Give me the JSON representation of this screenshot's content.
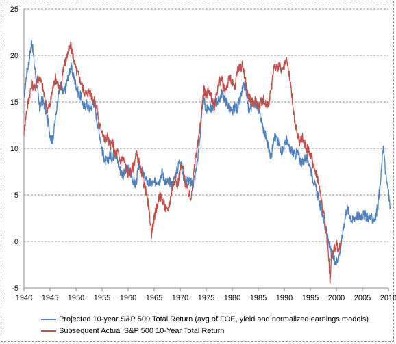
{
  "chart_data": {
    "type": "line",
    "xlim": [
      1940,
      2010
    ],
    "ylim": [
      -5,
      25
    ],
    "x_ticks": [
      1940,
      1945,
      1950,
      1955,
      1960,
      1965,
      1970,
      1975,
      1980,
      1985,
      1990,
      1995,
      2000,
      2005,
      2010
    ],
    "y_ticks": [
      -5,
      0,
      5,
      10,
      15,
      20,
      25
    ],
    "grid": "horizontal dashed",
    "legend_position": "bottom",
    "colors": {
      "projected": "#4f81bd",
      "actual": "#c0504d",
      "grid": "#8c8c8c",
      "axis": "#888888"
    },
    "series": [
      {
        "name": "Projected 10-year S&P 500 Total Return (avg of FOE, yield and normalized earnings models)",
        "color": "#4f81bd",
        "points": [
          [
            1940.0,
            15.5
          ],
          [
            1940.5,
            18.0
          ],
          [
            1941.0,
            19.5
          ],
          [
            1941.5,
            21.7
          ],
          [
            1942.0,
            19.0
          ],
          [
            1942.5,
            16.8
          ],
          [
            1943.0,
            14.2
          ],
          [
            1943.5,
            15.3
          ],
          [
            1944.0,
            14.5
          ],
          [
            1944.5,
            13.2
          ],
          [
            1945.0,
            11.5
          ],
          [
            1945.5,
            10.8
          ],
          [
            1946.0,
            13.0
          ],
          [
            1946.5,
            15.4
          ],
          [
            1947.0,
            16.8
          ],
          [
            1947.5,
            15.9
          ],
          [
            1948.0,
            16.5
          ],
          [
            1948.5,
            17.8
          ],
          [
            1949.0,
            18.8
          ],
          [
            1949.5,
            17.8
          ],
          [
            1950.0,
            16.8
          ],
          [
            1950.5,
            15.8
          ],
          [
            1951.0,
            15.6
          ],
          [
            1951.5,
            14.4
          ],
          [
            1952.0,
            14.8
          ],
          [
            1952.5,
            14.3
          ],
          [
            1953.0,
            14.5
          ],
          [
            1953.5,
            15.0
          ],
          [
            1954.0,
            13.0
          ],
          [
            1954.5,
            11.6
          ],
          [
            1955.0,
            9.8
          ],
          [
            1955.5,
            8.8
          ],
          [
            1956.0,
            8.5
          ],
          [
            1956.5,
            9.3
          ],
          [
            1957.0,
            8.9
          ],
          [
            1957.5,
            9.6
          ],
          [
            1958.0,
            8.6
          ],
          [
            1958.5,
            7.6
          ],
          [
            1959.0,
            7.2
          ],
          [
            1959.5,
            7.4
          ],
          [
            1960.0,
            7.8
          ],
          [
            1960.5,
            7.3
          ],
          [
            1961.0,
            6.5
          ],
          [
            1961.5,
            6.0
          ],
          [
            1962.0,
            8.2
          ],
          [
            1962.5,
            7.8
          ],
          [
            1963.0,
            7.0
          ],
          [
            1963.5,
            6.5
          ],
          [
            1964.0,
            6.2
          ],
          [
            1964.5,
            6.3
          ],
          [
            1965.0,
            6.2
          ],
          [
            1965.5,
            6.6
          ],
          [
            1966.0,
            6.5
          ],
          [
            1966.5,
            7.5
          ],
          [
            1967.0,
            6.6
          ],
          [
            1967.5,
            6.3
          ],
          [
            1968.0,
            6.4
          ],
          [
            1968.5,
            6.0
          ],
          [
            1969.0,
            7.0
          ],
          [
            1969.5,
            7.8
          ],
          [
            1970.0,
            9.0
          ],
          [
            1970.5,
            7.2
          ],
          [
            1971.0,
            6.6
          ],
          [
            1971.5,
            6.6
          ],
          [
            1972.0,
            6.3
          ],
          [
            1972.5,
            6.2
          ],
          [
            1973.0,
            7.5
          ],
          [
            1973.5,
            9.5
          ],
          [
            1974.0,
            12.5
          ],
          [
            1974.5,
            15.5
          ],
          [
            1975.0,
            14.0
          ],
          [
            1975.5,
            14.5
          ],
          [
            1976.0,
            14.2
          ],
          [
            1976.5,
            14.6
          ],
          [
            1977.0,
            15.0
          ],
          [
            1977.5,
            15.2
          ],
          [
            1978.0,
            16.0
          ],
          [
            1978.5,
            15.4
          ],
          [
            1979.0,
            14.8
          ],
          [
            1979.5,
            14.3
          ],
          [
            1980.0,
            13.8
          ],
          [
            1980.5,
            14.5
          ],
          [
            1981.0,
            14.3
          ],
          [
            1981.5,
            15.2
          ],
          [
            1982.0,
            16.4
          ],
          [
            1982.5,
            16.8
          ],
          [
            1983.0,
            14.4
          ],
          [
            1983.5,
            14.2
          ],
          [
            1984.0,
            15.0
          ],
          [
            1984.5,
            14.8
          ],
          [
            1985.0,
            14.2
          ],
          [
            1985.5,
            13.2
          ],
          [
            1986.0,
            12.0
          ],
          [
            1986.5,
            11.2
          ],
          [
            1987.0,
            10.0
          ],
          [
            1987.5,
            9.0
          ],
          [
            1988.0,
            11.4
          ],
          [
            1988.5,
            11.0
          ],
          [
            1989.0,
            10.4
          ],
          [
            1989.5,
            9.8
          ],
          [
            1990.0,
            10.2
          ],
          [
            1990.5,
            11.0
          ],
          [
            1991.0,
            9.8
          ],
          [
            1991.5,
            9.8
          ],
          [
            1992.0,
            9.2
          ],
          [
            1992.5,
            9.6
          ],
          [
            1993.0,
            8.8
          ],
          [
            1993.5,
            8.4
          ],
          [
            1994.0,
            9.0
          ],
          [
            1994.5,
            8.8
          ],
          [
            1995.0,
            8.0
          ],
          [
            1995.5,
            6.8
          ],
          [
            1996.0,
            5.8
          ],
          [
            1996.5,
            4.8
          ],
          [
            1997.0,
            3.6
          ],
          [
            1997.5,
            2.6
          ],
          [
            1998.0,
            1.2
          ],
          [
            1998.5,
            0.0
          ],
          [
            1999.0,
            -1.2
          ],
          [
            1999.5,
            -1.8
          ],
          [
            2000.0,
            -2.2
          ],
          [
            2000.5,
            -1.6
          ],
          [
            2001.0,
            0.0
          ],
          [
            2001.5,
            2.0
          ],
          [
            2002.0,
            3.6
          ],
          [
            2002.5,
            3.0
          ],
          [
            2003.0,
            2.2
          ],
          [
            2003.5,
            2.6
          ],
          [
            2004.0,
            2.8
          ],
          [
            2004.5,
            2.7
          ],
          [
            2005.0,
            2.9
          ],
          [
            2005.5,
            2.8
          ],
          [
            2006.0,
            2.6
          ],
          [
            2006.5,
            2.5
          ],
          [
            2007.0,
            2.4
          ],
          [
            2007.5,
            2.5
          ],
          [
            2008.0,
            4.0
          ],
          [
            2008.5,
            6.5
          ],
          [
            2009.0,
            10.4
          ],
          [
            2009.5,
            7.0
          ],
          [
            2010.0,
            5.2
          ],
          [
            2010.3,
            3.8
          ]
        ]
      },
      {
        "name": "Subsequent Actual S&P 500 10-Year Total Return",
        "color": "#c0504d",
        "points": [
          [
            1940.0,
            11.8
          ],
          [
            1940.5,
            14.0
          ],
          [
            1941.0,
            15.5
          ],
          [
            1941.5,
            17.0
          ],
          [
            1942.0,
            16.4
          ],
          [
            1942.5,
            17.4
          ],
          [
            1943.0,
            17.6
          ],
          [
            1943.5,
            16.8
          ],
          [
            1944.0,
            15.4
          ],
          [
            1944.5,
            14.2
          ],
          [
            1945.0,
            14.6
          ],
          [
            1945.5,
            16.4
          ],
          [
            1946.0,
            17.6
          ],
          [
            1946.5,
            17.0
          ],
          [
            1947.0,
            16.0
          ],
          [
            1947.5,
            18.6
          ],
          [
            1948.0,
            19.4
          ],
          [
            1948.5,
            20.4
          ],
          [
            1949.0,
            21.0
          ],
          [
            1949.5,
            19.8
          ],
          [
            1950.0,
            18.4
          ],
          [
            1950.5,
            17.8
          ],
          [
            1951.0,
            17.0
          ],
          [
            1951.5,
            16.2
          ],
          [
            1952.0,
            15.8
          ],
          [
            1952.5,
            16.2
          ],
          [
            1953.0,
            15.7
          ],
          [
            1953.5,
            15.0
          ],
          [
            1954.0,
            14.4
          ],
          [
            1954.5,
            12.4
          ],
          [
            1955.0,
            12.0
          ],
          [
            1955.5,
            10.8
          ],
          [
            1956.0,
            11.4
          ],
          [
            1956.5,
            10.2
          ],
          [
            1957.0,
            10.6
          ],
          [
            1957.5,
            9.4
          ],
          [
            1958.0,
            9.6
          ],
          [
            1958.5,
            8.6
          ],
          [
            1959.0,
            9.0
          ],
          [
            1959.5,
            8.2
          ],
          [
            1960.0,
            7.2
          ],
          [
            1960.5,
            7.6
          ],
          [
            1961.0,
            8.0
          ],
          [
            1961.5,
            9.4
          ],
          [
            1962.0,
            8.8
          ],
          [
            1962.5,
            7.4
          ],
          [
            1963.0,
            6.2
          ],
          [
            1963.5,
            5.2
          ],
          [
            1964.0,
            3.4
          ],
          [
            1964.5,
            0.9
          ],
          [
            1965.0,
            2.6
          ],
          [
            1965.5,
            3.6
          ],
          [
            1966.0,
            5.0
          ],
          [
            1966.5,
            4.6
          ],
          [
            1967.0,
            3.8
          ],
          [
            1967.5,
            3.2
          ],
          [
            1968.0,
            4.2
          ],
          [
            1968.5,
            5.8
          ],
          [
            1969.0,
            6.8
          ],
          [
            1969.5,
            6.0
          ],
          [
            1970.0,
            7.8
          ],
          [
            1970.5,
            8.0
          ],
          [
            1971.0,
            6.2
          ],
          [
            1971.5,
            5.4
          ],
          [
            1972.0,
            4.6
          ],
          [
            1972.5,
            6.8
          ],
          [
            1973.0,
            9.2
          ],
          [
            1973.5,
            10.8
          ],
          [
            1974.0,
            13.2
          ],
          [
            1974.5,
            16.6
          ],
          [
            1975.0,
            15.6
          ],
          [
            1975.5,
            16.4
          ],
          [
            1976.0,
            15.4
          ],
          [
            1976.5,
            14.4
          ],
          [
            1977.0,
            16.0
          ],
          [
            1977.5,
            17.2
          ],
          [
            1978.0,
            17.4
          ],
          [
            1978.5,
            16.2
          ],
          [
            1979.0,
            16.8
          ],
          [
            1979.5,
            17.6
          ],
          [
            1980.0,
            17.0
          ],
          [
            1980.5,
            16.4
          ],
          [
            1981.0,
            18.6
          ],
          [
            1981.5,
            18.6
          ],
          [
            1982.0,
            19.0
          ],
          [
            1982.5,
            17.4
          ],
          [
            1983.0,
            15.6
          ],
          [
            1983.5,
            15.2
          ],
          [
            1984.0,
            14.8
          ],
          [
            1984.5,
            15.2
          ],
          [
            1985.0,
            14.4
          ],
          [
            1985.5,
            15.0
          ],
          [
            1986.0,
            15.2
          ],
          [
            1986.5,
            14.6
          ],
          [
            1987.0,
            15.0
          ],
          [
            1987.5,
            16.4
          ],
          [
            1988.0,
            18.8
          ],
          [
            1988.5,
            18.6
          ],
          [
            1989.0,
            19.0
          ],
          [
            1989.5,
            18.2
          ],
          [
            1990.0,
            18.8
          ],
          [
            1990.5,
            19.4
          ],
          [
            1991.0,
            17.6
          ],
          [
            1991.5,
            15.4
          ],
          [
            1992.0,
            12.8
          ],
          [
            1992.5,
            11.6
          ],
          [
            1993.0,
            10.6
          ],
          [
            1993.5,
            11.2
          ],
          [
            1994.0,
            10.4
          ],
          [
            1994.5,
            9.8
          ],
          [
            1995.0,
            9.4
          ],
          [
            1995.5,
            8.4
          ],
          [
            1996.0,
            7.6
          ],
          [
            1996.5,
            6.6
          ],
          [
            1997.0,
            4.8
          ],
          [
            1997.5,
            3.2
          ],
          [
            1998.0,
            1.2
          ],
          [
            1998.5,
            -1.4
          ],
          [
            1998.8,
            -4.5
          ],
          [
            1999.0,
            -1.8
          ],
          [
            1999.5,
            -0.8
          ],
          [
            2000.0,
            -0.4
          ],
          [
            2000.5,
            -0.8
          ],
          [
            2001.0,
            0.2
          ]
        ]
      }
    ]
  }
}
